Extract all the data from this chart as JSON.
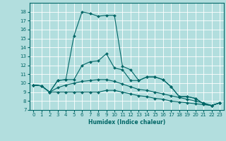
{
  "title": "",
  "xlabel": "Humidex (Indice chaleur)",
  "ylabel": "",
  "background_color": "#b2dede",
  "grid_color": "#ffffff",
  "line_color": "#006666",
  "xlim": [
    -0.5,
    23.5
  ],
  "ylim": [
    7,
    19
  ],
  "xticks": [
    0,
    1,
    2,
    3,
    4,
    5,
    6,
    7,
    8,
    9,
    10,
    11,
    12,
    13,
    14,
    15,
    16,
    17,
    18,
    19,
    20,
    21,
    22,
    23
  ],
  "yticks": [
    7,
    8,
    9,
    10,
    11,
    12,
    13,
    14,
    15,
    16,
    17,
    18
  ],
  "series": [
    [
      9.8,
      9.7,
      9.0,
      10.3,
      10.4,
      15.3,
      18.0,
      17.8,
      17.5,
      17.6,
      17.6,
      11.9,
      11.5,
      10.3,
      10.7,
      10.7,
      10.4,
      9.6,
      8.5,
      8.5,
      8.3,
      7.7,
      7.5,
      7.8
    ],
    [
      9.8,
      9.7,
      9.0,
      10.3,
      10.4,
      10.4,
      12.0,
      12.4,
      12.5,
      13.3,
      11.7,
      11.5,
      10.3,
      10.3,
      10.7,
      10.7,
      10.4,
      9.6,
      8.5,
      8.5,
      8.3,
      7.7,
      7.5,
      7.8
    ],
    [
      9.8,
      9.7,
      9.0,
      9.0,
      9.0,
      9.0,
      9.0,
      9.0,
      9.0,
      9.2,
      9.2,
      9.0,
      8.8,
      8.6,
      8.5,
      8.3,
      8.2,
      8.0,
      7.9,
      7.8,
      7.7,
      7.6,
      7.5,
      7.8
    ],
    [
      9.8,
      9.7,
      9.0,
      9.5,
      9.8,
      10.0,
      10.2,
      10.3,
      10.4,
      10.4,
      10.2,
      9.9,
      9.6,
      9.3,
      9.2,
      9.0,
      8.8,
      8.6,
      8.4,
      8.2,
      8.0,
      7.8,
      7.5,
      7.8
    ]
  ],
  "xlabel_fontsize": 5.5,
  "tick_fontsize": 5.0,
  "linewidth": 0.8,
  "markersize": 2.0
}
